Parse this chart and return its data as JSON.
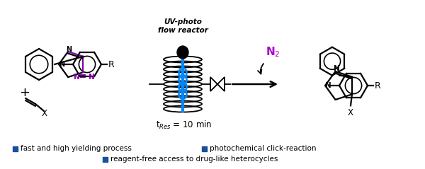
{
  "background_color": "#ffffff",
  "bullet_color": "#1B4F9B",
  "bullet_items_row1_left": "fast and high yielding process",
  "bullet_items_row1_right": "photochemical click-reaction",
  "bullet_items_row2": "reagent-free access to drug-like heterocycles",
  "reactor_label": "UV-photo\nflow reactor",
  "tres_label": "t$_{Res}$ = 10 min",
  "n2_color": "#AA00CC",
  "n2_label": "N$_2$",
  "purple_color": "#8800AA",
  "r_label": "R",
  "x_label": "X"
}
